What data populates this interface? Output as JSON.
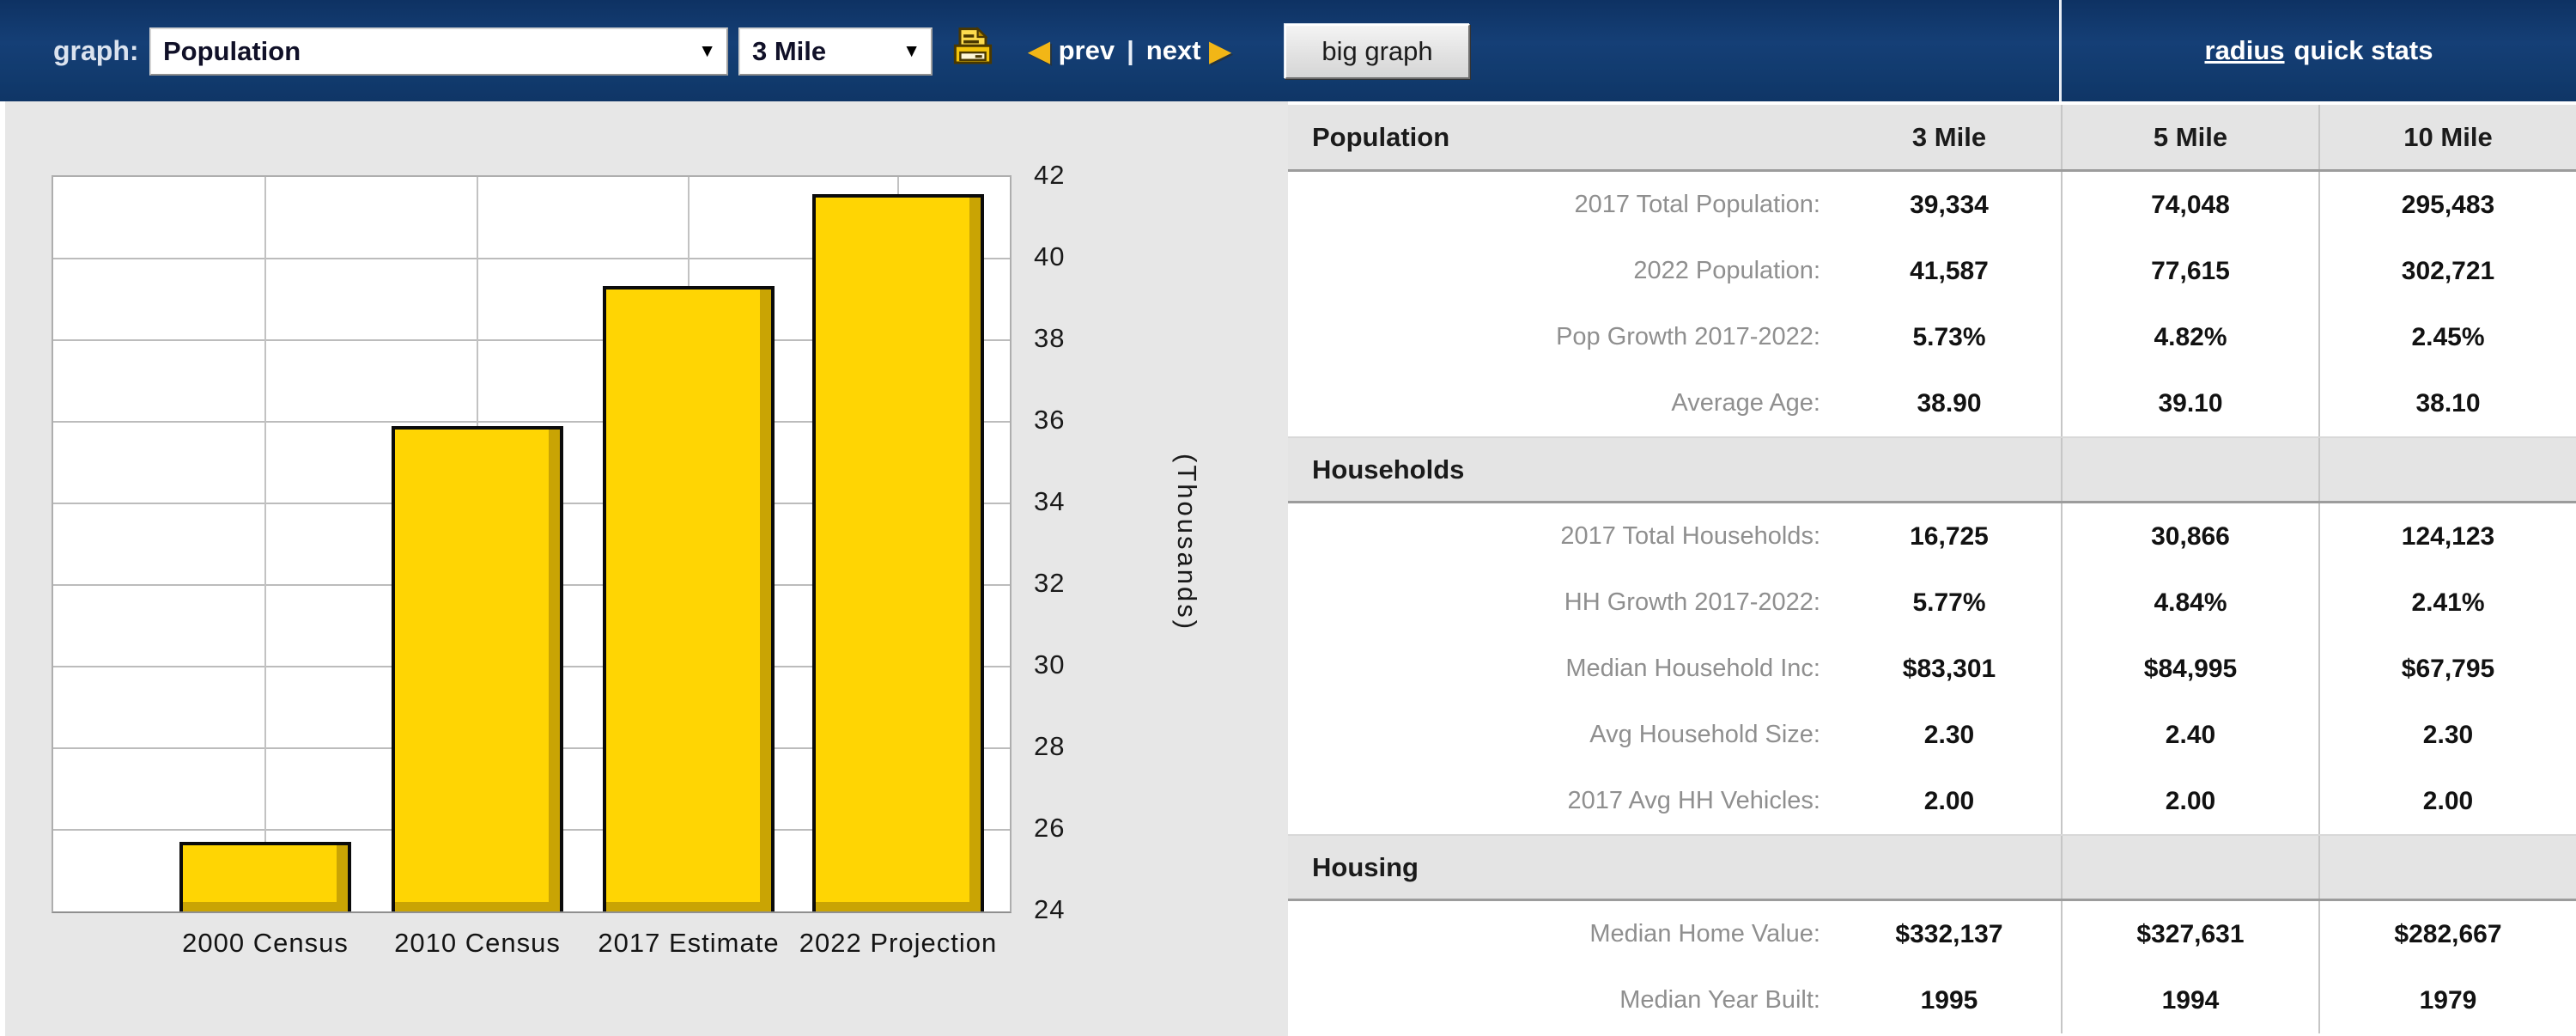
{
  "toolbar": {
    "graph_label": "graph:",
    "graph_select_value": "Population",
    "radius_select_value": "3 Mile",
    "prev_label": "prev",
    "divider": "|",
    "next_label": "next",
    "big_graph_label": "big graph",
    "quick_stats_link": "radius",
    "quick_stats_rest": "quick stats"
  },
  "chart_data": {
    "type": "bar",
    "categories": [
      "2000 Census",
      "2010 Census",
      "2017 Estimate",
      "2022 Projection"
    ],
    "values": [
      25.7,
      35.9,
      39.334,
      41.587
    ],
    "ylabel": "(Thousands)",
    "ylim": [
      24,
      42
    ],
    "yticks": [
      42,
      40,
      38,
      36,
      34,
      32,
      30,
      28,
      26,
      24
    ],
    "grid": true,
    "axis_side": "right",
    "bar_color": "#ffd503"
  },
  "table": {
    "columns": [
      "3 Mile",
      "5 Mile",
      "10 Mile"
    ],
    "sections": [
      {
        "title": "Population",
        "rows": [
          {
            "label": "2017 Total Population:",
            "values": [
              "39,334",
              "74,048",
              "295,483"
            ]
          },
          {
            "label": "2022 Population:",
            "values": [
              "41,587",
              "77,615",
              "302,721"
            ]
          },
          {
            "label": "Pop Growth 2017-2022:",
            "values": [
              "5.73%",
              "4.82%",
              "2.45%"
            ]
          },
          {
            "label": "Average Age:",
            "values": [
              "38.90",
              "39.10",
              "38.10"
            ]
          }
        ]
      },
      {
        "title": "Households",
        "rows": [
          {
            "label": "2017 Total Households:",
            "values": [
              "16,725",
              "30,866",
              "124,123"
            ]
          },
          {
            "label": "HH Growth 2017-2022:",
            "values": [
              "5.77%",
              "4.84%",
              "2.41%"
            ]
          },
          {
            "label": "Median Household Inc:",
            "values": [
              "$83,301",
              "$84,995",
              "$67,795"
            ]
          },
          {
            "label": "Avg Household Size:",
            "values": [
              "2.30",
              "2.40",
              "2.30"
            ]
          },
          {
            "label": "2017 Avg HH Vehicles:",
            "values": [
              "2.00",
              "2.00",
              "2.00"
            ]
          }
        ]
      },
      {
        "title": "Housing",
        "rows": [
          {
            "label": "Median Home Value:",
            "values": [
              "$332,137",
              "$327,631",
              "$282,667"
            ]
          },
          {
            "label": "Median Year Built:",
            "values": [
              "1995",
              "1994",
              "1979"
            ]
          }
        ]
      }
    ]
  },
  "colors": {
    "topbar_navy": "#113a6d",
    "panel_gray": "#e7e7e7",
    "bar_yellow": "#ffd503",
    "bar_shade": "#c9a404",
    "header_gray": "#e4e4e4",
    "label_gray": "#8f8f8f"
  }
}
